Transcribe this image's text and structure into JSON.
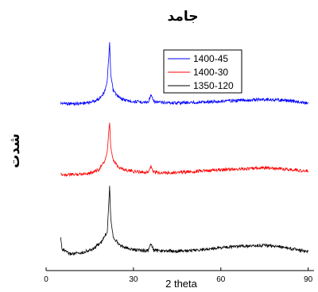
{
  "chart_data": {
    "type": "line",
    "title": "جامد",
    "xlabel": "2 theta",
    "ylabel": "شدت",
    "xlim": [
      0,
      92
    ],
    "x_ticks": [
      0,
      30,
      60,
      90
    ],
    "legend_position": "top-center",
    "series": [
      {
        "name": "1400-45",
        "color": "#0000ff",
        "values": [
          [
            5,
            0.7
          ],
          [
            10,
            0.68
          ],
          [
            15,
            0.72
          ],
          [
            18,
            0.82
          ],
          [
            20,
            1.05
          ],
          [
            21,
            1.4
          ],
          [
            21.8,
            2.6
          ],
          [
            22.2,
            1.6
          ],
          [
            23,
            1.1
          ],
          [
            25,
            0.88
          ],
          [
            27,
            0.8
          ],
          [
            30,
            0.75
          ],
          [
            35,
            0.73
          ],
          [
            36,
            0.95
          ],
          [
            37,
            0.74
          ],
          [
            40,
            0.72
          ],
          [
            45,
            0.71
          ],
          [
            50,
            0.72
          ],
          [
            55,
            0.74
          ],
          [
            60,
            0.76
          ],
          [
            65,
            0.78
          ],
          [
            70,
            0.8
          ],
          [
            75,
            0.82
          ],
          [
            80,
            0.8
          ],
          [
            85,
            0.76
          ],
          [
            90,
            0.7
          ]
        ]
      },
      {
        "name": "1400-30",
        "color": "#ff0000",
        "values": [
          [
            5,
            0.45
          ],
          [
            10,
            0.45
          ],
          [
            15,
            0.5
          ],
          [
            18,
            0.6
          ],
          [
            20,
            0.85
          ],
          [
            21,
            1.15
          ],
          [
            21.8,
            2.1
          ],
          [
            22.2,
            1.3
          ],
          [
            23,
            0.9
          ],
          [
            25,
            0.68
          ],
          [
            27,
            0.6
          ],
          [
            30,
            0.55
          ],
          [
            35,
            0.52
          ],
          [
            36,
            0.7
          ],
          [
            37,
            0.52
          ],
          [
            40,
            0.51
          ],
          [
            45,
            0.52
          ],
          [
            50,
            0.54
          ],
          [
            55,
            0.57
          ],
          [
            60,
            0.6
          ],
          [
            65,
            0.62
          ],
          [
            70,
            0.64
          ],
          [
            75,
            0.66
          ],
          [
            80,
            0.64
          ],
          [
            85,
            0.6
          ],
          [
            90,
            0.55
          ]
        ]
      },
      {
        "name": "1350-120",
        "color": "#000000",
        "values": [
          [
            5,
            0.75
          ],
          [
            5.5,
            0.4
          ],
          [
            8,
            0.25
          ],
          [
            12,
            0.28
          ],
          [
            16,
            0.4
          ],
          [
            19,
            0.62
          ],
          [
            21,
            0.95
          ],
          [
            21.8,
            2.4
          ],
          [
            22.2,
            1.4
          ],
          [
            23,
            0.8
          ],
          [
            25,
            0.55
          ],
          [
            27,
            0.45
          ],
          [
            30,
            0.38
          ],
          [
            35,
            0.35
          ],
          [
            36,
            0.55
          ],
          [
            37,
            0.36
          ],
          [
            40,
            0.34
          ],
          [
            45,
            0.34
          ],
          [
            50,
            0.36
          ],
          [
            55,
            0.4
          ],
          [
            60,
            0.45
          ],
          [
            65,
            0.48
          ],
          [
            70,
            0.5
          ],
          [
            75,
            0.52
          ],
          [
            80,
            0.48
          ],
          [
            85,
            0.4
          ],
          [
            90,
            0.32
          ]
        ]
      }
    ]
  }
}
